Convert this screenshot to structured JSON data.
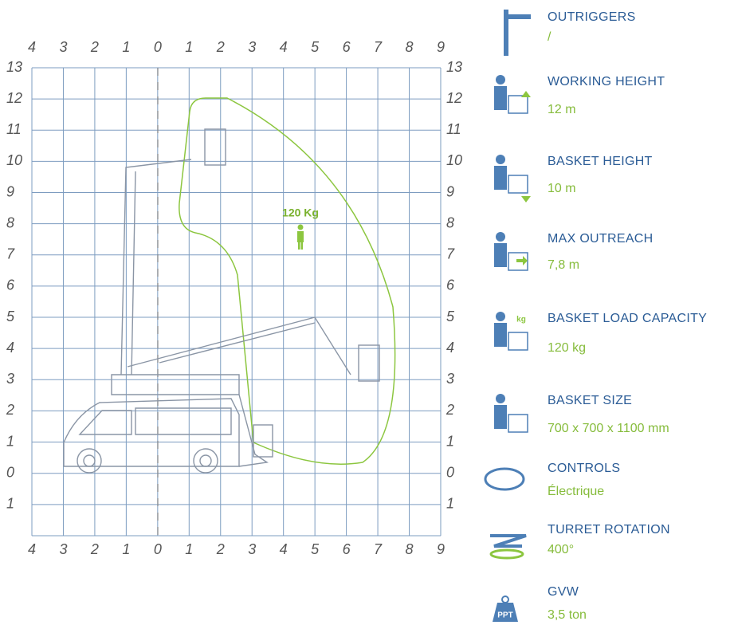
{
  "diagram": {
    "x_labels": [
      "4",
      "3",
      "2",
      "1",
      "0",
      "1",
      "2",
      "3",
      "4",
      "5",
      "6",
      "7",
      "8",
      "9"
    ],
    "y_labels": [
      "13",
      "12",
      "11",
      "10",
      "9",
      "8",
      "7",
      "6",
      "5",
      "4",
      "3",
      "2",
      "1",
      "0",
      "1"
    ],
    "load_label": "120 Kg"
  },
  "specs": [
    {
      "label": "OUTRIGGERS",
      "value": "/"
    },
    {
      "label": "WORKING HEIGHT",
      "value": "12 m"
    },
    {
      "label": "BASKET HEIGHT",
      "value": "10 m"
    },
    {
      "label": "MAX OUTREACH",
      "value": "7,8 m"
    },
    {
      "label": "BASKET LOAD CAPACITY",
      "value": "120 kg",
      "icon_label": "kg"
    },
    {
      "label": "BASKET SIZE",
      "value": "700 x 700 x 1100 mm"
    },
    {
      "label": "CONTROLS",
      "value": "Électrique"
    },
    {
      "label": "TURRET ROTATION",
      "value": "400°"
    },
    {
      "label": "GVW",
      "value": "3,5 ton",
      "icon_label": "PPT"
    }
  ]
}
